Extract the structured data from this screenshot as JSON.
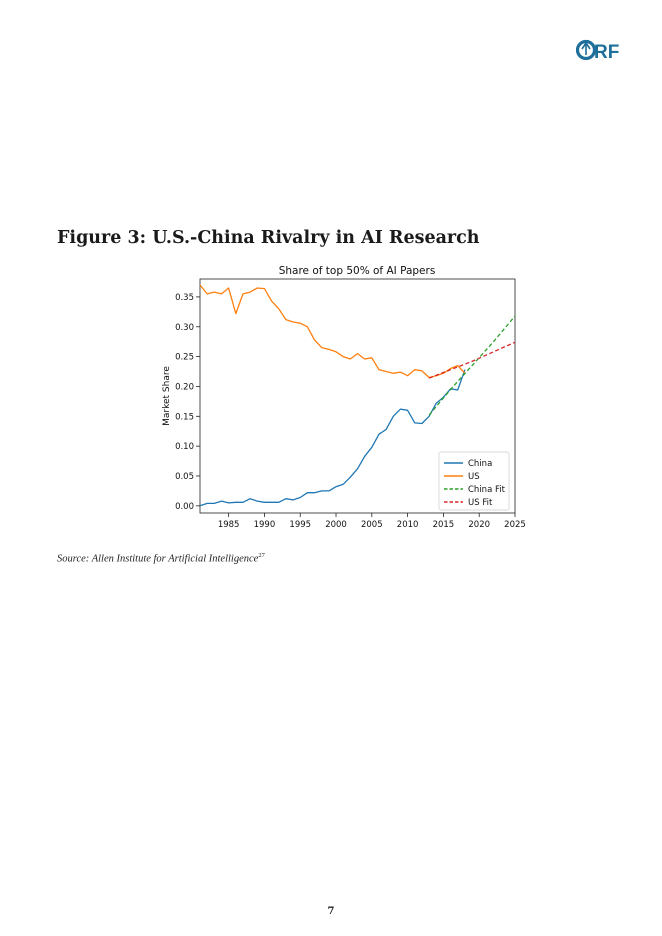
{
  "header": {
    "logo_text": "ORF",
    "logo_color": "#1f6f9a"
  },
  "figure": {
    "title": "Figure 3: U.S.-China Rivalry in AI Research",
    "source_text": "Source: Allen Institute for Artificial Intelligence",
    "source_footnote": "27"
  },
  "chart_data": {
    "type": "line",
    "title": "Share of top 50% of AI Papers",
    "xlabel": "",
    "ylabel": "Market Share",
    "xlim": [
      1981,
      2025
    ],
    "ylim": [
      -0.012,
      0.38
    ],
    "x_ticks": [
      1985,
      1990,
      1995,
      2000,
      2005,
      2010,
      2015,
      2020,
      2025
    ],
    "y_ticks": [
      0.0,
      0.05,
      0.1,
      0.15,
      0.2,
      0.25,
      0.3,
      0.35
    ],
    "y_tick_labels": [
      "0.00",
      "0.05",
      "0.10",
      "0.15",
      "0.20",
      "0.25",
      "0.30",
      "0.35"
    ],
    "legend_position": "lower-right",
    "series": [
      {
        "name": "China",
        "color": "#1f77b4",
        "style": "solid",
        "x": [
          1981,
          1982,
          1983,
          1984,
          1985,
          1986,
          1987,
          1988,
          1989,
          1990,
          1991,
          1992,
          1993,
          1994,
          1995,
          1996,
          1997,
          1998,
          1999,
          2000,
          2001,
          2002,
          2003,
          2004,
          2005,
          2006,
          2007,
          2008,
          2009,
          2010,
          2011,
          2012,
          2013,
          2014,
          2015,
          2016,
          2017,
          2018
        ],
        "y": [
          0.0,
          0.004,
          0.004,
          0.008,
          0.005,
          0.006,
          0.006,
          0.012,
          0.008,
          0.006,
          0.006,
          0.006,
          0.012,
          0.01,
          0.014,
          0.022,
          0.022,
          0.025,
          0.025,
          0.032,
          0.036,
          0.048,
          0.062,
          0.083,
          0.098,
          0.12,
          0.128,
          0.15,
          0.162,
          0.16,
          0.139,
          0.138,
          0.15,
          0.172,
          0.182,
          0.196,
          0.194,
          0.228
        ]
      },
      {
        "name": "US",
        "color": "#ff7f0e",
        "style": "solid",
        "x": [
          1981,
          1982,
          1983,
          1984,
          1985,
          1986,
          1987,
          1988,
          1989,
          1990,
          1991,
          1992,
          1993,
          1994,
          1995,
          1996,
          1997,
          1998,
          1999,
          2000,
          2001,
          2002,
          2003,
          2004,
          2005,
          2006,
          2007,
          2008,
          2009,
          2010,
          2011,
          2012,
          2013,
          2014,
          2015,
          2016,
          2017,
          2018
        ],
        "y": [
          0.37,
          0.355,
          0.358,
          0.355,
          0.365,
          0.322,
          0.355,
          0.358,
          0.365,
          0.364,
          0.343,
          0.33,
          0.312,
          0.308,
          0.306,
          0.3,
          0.278,
          0.265,
          0.262,
          0.258,
          0.25,
          0.246,
          0.255,
          0.246,
          0.248,
          0.228,
          0.225,
          0.222,
          0.224,
          0.218,
          0.228,
          0.226,
          0.215,
          0.218,
          0.222,
          0.23,
          0.235,
          0.222
        ]
      },
      {
        "name": "China Fit",
        "color": "#2ca02c",
        "style": "dashed",
        "x": [
          2013,
          2016,
          2019,
          2022,
          2025
        ],
        "y": [
          0.152,
          0.195,
          0.235,
          0.275,
          0.318
        ]
      },
      {
        "name": "US Fit",
        "color": "#d62728",
        "style": "dashed",
        "x": [
          2013,
          2016,
          2019,
          2022,
          2025
        ],
        "y": [
          0.214,
          0.228,
          0.242,
          0.258,
          0.274
        ]
      }
    ]
  },
  "footer": {
    "page_number": "7"
  }
}
